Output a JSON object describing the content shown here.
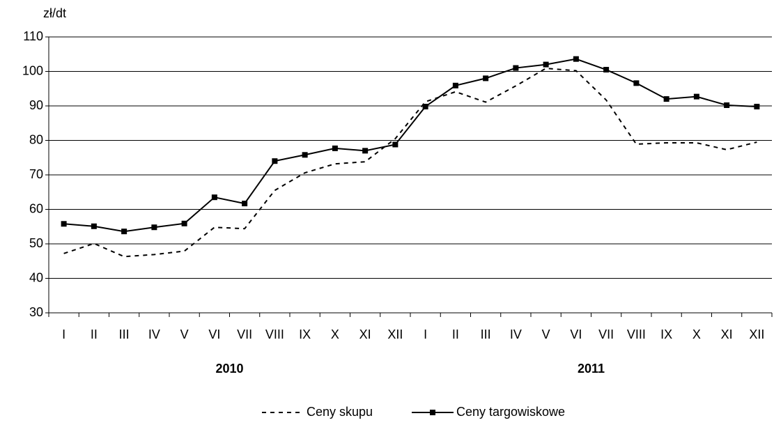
{
  "chart_data": {
    "type": "line",
    "ylabel": "zł/dt",
    "categories": [
      "I",
      "II",
      "III",
      "IV",
      "V",
      "VI",
      "VII",
      "VIII",
      "IX",
      "X",
      "XI",
      "XII",
      "I",
      "II",
      "III",
      "IV",
      "V",
      "VI",
      "VII",
      "VIII",
      "IX",
      "X",
      "XI",
      "XII"
    ],
    "groups": [
      {
        "label": "2010",
        "span": [
          0,
          11
        ]
      },
      {
        "label": "2011",
        "span": [
          12,
          23
        ]
      }
    ],
    "series": [
      {
        "name": "Ceny skupu",
        "color": "#000000",
        "line_style": "dashed",
        "marker": "none",
        "values": [
          47.2,
          50.1,
          46.3,
          46.9,
          47.9,
          54.8,
          54.4,
          65.5,
          70.6,
          73.2,
          73.8,
          80.5,
          91.2,
          94.1,
          91.1,
          95.8,
          100.9,
          100.2,
          91.7,
          78.9,
          79.3,
          79.3,
          77.3,
          79.5
        ]
      },
      {
        "name": "Ceny targowiskowe",
        "color": "#000000",
        "line_style": "solid",
        "marker": "square",
        "values": [
          55.8,
          55.1,
          53.6,
          54.8,
          55.9,
          63.5,
          61.7,
          74.0,
          75.8,
          77.7,
          77.0,
          78.8,
          89.8,
          95.9,
          98.0,
          101.0,
          102.0,
          103.6,
          100.5,
          96.6,
          92.0,
          92.7,
          90.2,
          89.8
        ]
      }
    ],
    "ylim": [
      30,
      110
    ],
    "yticks": [
      30,
      40,
      50,
      60,
      70,
      80,
      90,
      100,
      110
    ],
    "grid": true,
    "legend": "bottom"
  }
}
